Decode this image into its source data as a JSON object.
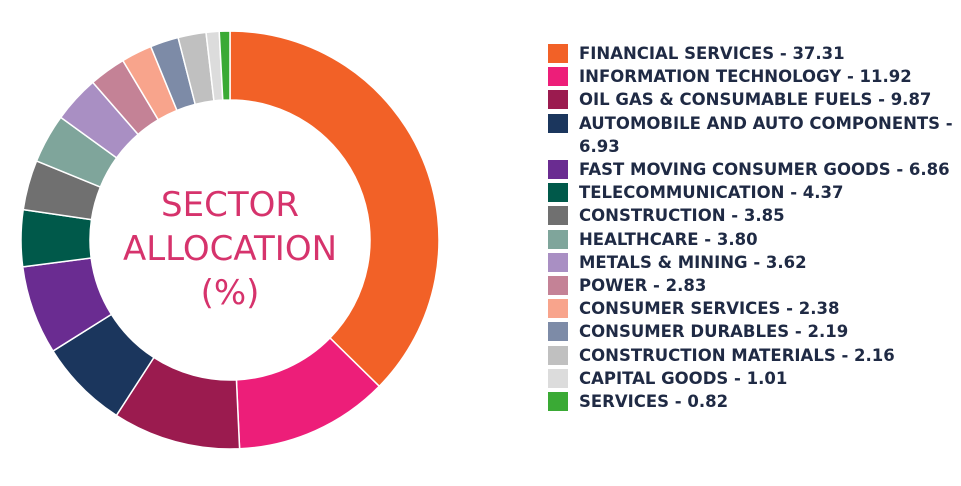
{
  "center_title": {
    "line1": "SECTOR",
    "line2": "ALLOCATION",
    "line3": "(%)"
  },
  "chart_data": {
    "type": "pie",
    "variant": "donut",
    "title": "SECTOR ALLOCATION (%)",
    "legend_position": "right",
    "labels": [
      "FINANCIAL SERVICES - 37.31",
      "INFORMATION TECHNOLOGY - 11.92",
      "OIL GAS & CONSUMABLE FUELS - 9.87",
      "AUTOMOBILE AND AUTO COMPONENTS - 6.93",
      "FAST MOVING CONSUMER GOODS - 6.86",
      "TELECOMMUNICATION - 4.37",
      "CONSTRUCTION - 3.85",
      "HEALTHCARE - 3.80",
      "METALS & MINING - 3.62",
      "POWER - 2.83",
      "CONSUMER SERVICES - 2.38",
      "CONSUMER DURABLES - 2.19",
      "CONSTRUCTION MATERIALS - 2.16",
      "CAPITAL GOODS - 1.01",
      "SERVICES - 0.82"
    ],
    "values": [
      37.31,
      11.92,
      9.87,
      6.93,
      6.86,
      4.37,
      3.85,
      3.8,
      3.62,
      2.83,
      2.38,
      2.19,
      2.16,
      1.01,
      0.82
    ],
    "colors": [
      "#f26127",
      "#ed1e79",
      "#9b1b4f",
      "#1b365d",
      "#6a2c91",
      "#00594a",
      "#707070",
      "#7fa59b",
      "#a98fc3",
      "#c48296",
      "#f8a48c",
      "#7d8ba7",
      "#c0c0c0",
      "#dcdcdc",
      "#3aaa35"
    ]
  }
}
